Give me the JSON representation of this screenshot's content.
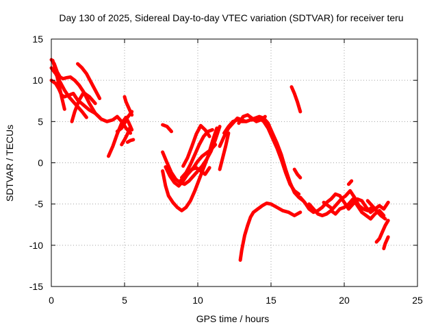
{
  "chart_data": {
    "type": "line",
    "title": "Day 130 of 2025, Sidereal Day-to-day VTEC variation (SDTVAR) for receiver teru",
    "xlabel": "GPS time / hours",
    "ylabel": "SDTVAR / TECUs",
    "xlim": [
      0,
      25
    ],
    "ylim": [
      -15,
      15
    ],
    "xticks": [
      "0",
      "5",
      "10",
      "15",
      "20",
      "25"
    ],
    "yticks": [
      "-15",
      "-10",
      "-5",
      "0",
      "5",
      "10",
      "15"
    ],
    "grid": true,
    "color": "#ff0000",
    "series": [
      {
        "x": [
          0.0,
          0.2,
          0.4,
          0.6,
          0.8,
          1.0,
          1.3,
          1.6,
          1.9,
          2.2,
          2.6,
          3.0,
          3.4,
          3.8,
          4.2,
          4.5,
          4.8,
          5.1,
          5.4
        ],
        "y": [
          12.5,
          12.0,
          11.0,
          10.4,
          10.2,
          10.3,
          10.4,
          10.0,
          9.4,
          8.6,
          7.2,
          6.0,
          5.3,
          5.0,
          5.2,
          5.6,
          5.0,
          4.2,
          3.6
        ]
      },
      {
        "x": [
          0.0,
          0.3,
          0.6,
          0.9,
          1.2,
          1.5,
          1.8,
          2.1,
          2.4
        ],
        "y": [
          11.5,
          10.8,
          9.8,
          8.8,
          8.0,
          7.4,
          6.8,
          6.2,
          5.5
        ]
      },
      {
        "x": [
          0.0,
          0.3,
          0.5,
          0.7,
          0.9,
          1.2,
          1.5,
          1.8,
          2.2,
          2.6,
          3.0,
          3.3
        ],
        "y": [
          10.0,
          9.6,
          9.0,
          8.2,
          8.0,
          8.2,
          8.4,
          7.6,
          7.0,
          6.4,
          6.0,
          5.5
        ]
      },
      {
        "x": [
          0.1,
          0.3,
          0.5,
          0.7,
          0.9
        ],
        "y": [
          12.4,
          11.2,
          9.6,
          8.0,
          6.5
        ]
      },
      {
        "x": [
          1.4,
          1.6,
          1.9,
          2.2,
          2.6,
          3.0
        ],
        "y": [
          5.0,
          6.2,
          7.6,
          8.5,
          8.0,
          7.2
        ]
      },
      {
        "x": [
          1.8,
          2.1,
          2.4,
          2.7,
          3.0,
          3.3
        ],
        "y": [
          12.0,
          11.5,
          10.8,
          9.8,
          8.8,
          7.8
        ]
      },
      {
        "x": [
          3.9,
          4.2,
          4.5,
          4.8,
          5.1,
          5.3,
          5.5
        ],
        "y": [
          0.8,
          2.0,
          3.5,
          4.8,
          5.5,
          4.8,
          4.0
        ]
      },
      {
        "x": [
          4.8,
          5.0,
          5.2,
          5.4
        ],
        "y": [
          2.2,
          2.8,
          3.5,
          4.4
        ]
      },
      {
        "x": [
          4.5,
          4.8,
          5.0,
          5.2,
          5.5
        ],
        "y": [
          3.8,
          4.2,
          4.8,
          5.5,
          6.2
        ]
      },
      {
        "x": [
          5.0,
          5.1,
          5.3,
          5.5
        ],
        "y": [
          8.0,
          7.4,
          6.6,
          5.8
        ]
      },
      {
        "x": [
          5.2,
          5.4,
          5.6
        ],
        "y": [
          2.5,
          2.7,
          2.8
        ]
      },
      {
        "x": [
          7.6,
          7.9,
          8.2
        ],
        "y": [
          4.6,
          4.4,
          3.8
        ]
      },
      {
        "x": [
          7.6,
          7.8,
          8.0,
          8.3,
          8.6,
          8.9,
          9.2,
          9.5,
          9.8,
          10.1,
          10.4,
          10.7,
          11.0,
          11.3
        ],
        "y": [
          -1.0,
          -2.8,
          -4.0,
          -4.8,
          -5.4,
          -5.8,
          -5.4,
          -4.6,
          -3.4,
          -2.0,
          -0.6,
          0.8,
          2.6,
          4.2
        ]
      },
      {
        "x": [
          7.6,
          7.9,
          8.2,
          8.5,
          8.8,
          9.1,
          9.4,
          9.7,
          10.0,
          10.3,
          10.6,
          10.9,
          11.2,
          11.5
        ],
        "y": [
          1.3,
          0.0,
          -1.2,
          -2.0,
          -2.4,
          -2.6,
          -2.2,
          -1.6,
          -1.0,
          -0.4,
          0.4,
          1.4,
          2.8,
          4.4
        ]
      },
      {
        "x": [
          7.8,
          8.1,
          8.4,
          8.7,
          9.0,
          9.3,
          9.6,
          9.9,
          10.2,
          10.5,
          10.8
        ],
        "y": [
          -0.5,
          -1.6,
          -2.4,
          -2.8,
          -2.2,
          -1.4,
          -0.8,
          -0.6,
          -1.0,
          -1.4,
          -0.6
        ]
      },
      {
        "x": [
          8.9,
          9.2,
          9.5,
          9.8,
          10.1,
          10.4,
          10.7,
          11.0
        ],
        "y": [
          -1.8,
          -1.2,
          -0.2,
          1.0,
          2.2,
          3.2,
          3.8,
          4.0
        ]
      },
      {
        "x": [
          8.8,
          9.1,
          9.4,
          9.7,
          10.0,
          10.3,
          10.6,
          10.9,
          11.2
        ],
        "y": [
          -2.2,
          -1.8,
          -1.2,
          -0.6,
          0.2,
          0.8,
          1.2,
          1.6,
          2.2
        ]
      },
      {
        "x": [
          9.0,
          9.3,
          9.6,
          9.9,
          10.2,
          10.5,
          10.8
        ],
        "y": [
          -0.4,
          0.6,
          2.0,
          3.5,
          4.5,
          4.0,
          3.2
        ]
      },
      {
        "x": [
          11.5,
          11.7,
          11.9,
          12.1
        ],
        "y": [
          -0.8,
          0.6,
          2.0,
          3.6
        ]
      },
      {
        "x": [
          11.8,
          12.1,
          12.4,
          12.7,
          13.0,
          13.3,
          13.6,
          13.9,
          14.2,
          14.5,
          14.8,
          15.1,
          15.4,
          15.7,
          16.0,
          16.3,
          16.6,
          16.9,
          17.2
        ],
        "y": [
          3.6,
          4.4,
          5.0,
          5.2,
          5.0,
          5.0,
          5.2,
          5.4,
          5.6,
          5.4,
          4.8,
          3.6,
          2.4,
          1.0,
          -0.8,
          -2.4,
          -3.6,
          -4.2,
          -4.6
        ]
      },
      {
        "x": [
          11.5,
          11.8,
          12.1,
          12.4,
          12.7,
          13.0,
          13.3,
          13.6,
          13.9,
          14.2,
          14.5,
          14.8,
          15.1,
          15.4,
          15.7,
          16.0,
          16.3,
          16.6,
          16.9
        ],
        "y": [
          2.0,
          3.2,
          4.2,
          4.8,
          5.4,
          5.2,
          5.0,
          5.2,
          5.2,
          5.4,
          5.0,
          4.2,
          3.0,
          1.8,
          0.4,
          -1.2,
          -2.6,
          -3.4,
          -3.8
        ]
      },
      {
        "x": [
          12.8,
          13.1,
          13.4,
          13.7,
          14.0,
          14.3,
          14.6
        ],
        "y": [
          4.8,
          5.6,
          5.8,
          5.4,
          5.0,
          5.2,
          5.6
        ]
      },
      {
        "x": [
          12.9,
          13.0,
          13.2,
          13.4,
          13.6,
          13.8,
          14.1,
          14.4,
          14.7,
          15.0,
          15.4,
          15.8,
          16.2,
          16.6,
          17.0
        ],
        "y": [
          -11.8,
          -10.6,
          -8.8,
          -7.6,
          -6.6,
          -6.0,
          -5.6,
          -5.2,
          -4.9,
          -5.0,
          -5.4,
          -5.8,
          -6.0,
          -6.4,
          -6.0
        ]
      },
      {
        "x": [
          16.4,
          16.6,
          16.8,
          17.0
        ],
        "y": [
          9.2,
          8.4,
          7.4,
          6.2
        ]
      },
      {
        "x": [
          16.6,
          16.8,
          17.0
        ],
        "y": [
          -0.8,
          -1.4,
          -1.8
        ]
      },
      {
        "x": [
          17.0,
          17.3,
          17.6,
          17.9,
          18.2,
          18.5,
          18.8,
          19.1,
          19.4,
          19.7,
          20.0,
          20.3,
          20.6,
          20.9,
          21.2,
          21.5,
          21.8,
          22.1,
          22.4,
          22.7,
          23.0
        ],
        "y": [
          -4.2,
          -4.8,
          -5.6,
          -6.0,
          -5.8,
          -5.4,
          -4.8,
          -4.4,
          -3.8,
          -4.0,
          -4.8,
          -5.6,
          -5.0,
          -4.4,
          -4.6,
          -5.4,
          -6.0,
          -5.6,
          -5.2,
          -5.6,
          -4.8
        ]
      },
      {
        "x": [
          17.6,
          17.9,
          18.2,
          18.5,
          18.8,
          19.1,
          19.4,
          19.7,
          20.0,
          20.3,
          20.6,
          20.9,
          21.2,
          21.5,
          21.8,
          22.1,
          22.4,
          22.7
        ],
        "y": [
          -5.0,
          -5.6,
          -6.2,
          -6.4,
          -6.2,
          -5.8,
          -6.2,
          -5.6,
          -5.4,
          -5.0,
          -4.4,
          -5.2,
          -6.0,
          -6.4,
          -6.8,
          -6.2,
          -5.8,
          -6.4
        ]
      },
      {
        "x": [
          18.6,
          18.9,
          19.2,
          19.5,
          19.8,
          20.1,
          20.4,
          20.7,
          21.0,
          21.3,
          21.6,
          21.9,
          22.2,
          22.5
        ],
        "y": [
          -4.8,
          -5.2,
          -5.6,
          -5.0,
          -4.4,
          -4.0,
          -3.4,
          -4.2,
          -5.2,
          -5.6,
          -5.8,
          -5.4,
          -5.8,
          -6.2
        ]
      },
      {
        "x": [
          20.3,
          20.5
        ],
        "y": [
          -2.6,
          -2.2
        ]
      },
      {
        "x": [
          21.6,
          21.9,
          22.2,
          22.5,
          22.8
        ],
        "y": [
          -4.6,
          -5.2,
          -5.8,
          -6.4,
          -6.8
        ]
      },
      {
        "x": [
          22.2,
          22.4,
          22.6,
          22.8,
          23.0
        ],
        "y": [
          -9.6,
          -9.2,
          -8.4,
          -7.6,
          -7.0
        ]
      },
      {
        "x": [
          22.7,
          22.8,
          22.9,
          23.0
        ],
        "y": [
          -10.4,
          -9.8,
          -9.4,
          -9.0
        ]
      }
    ]
  }
}
